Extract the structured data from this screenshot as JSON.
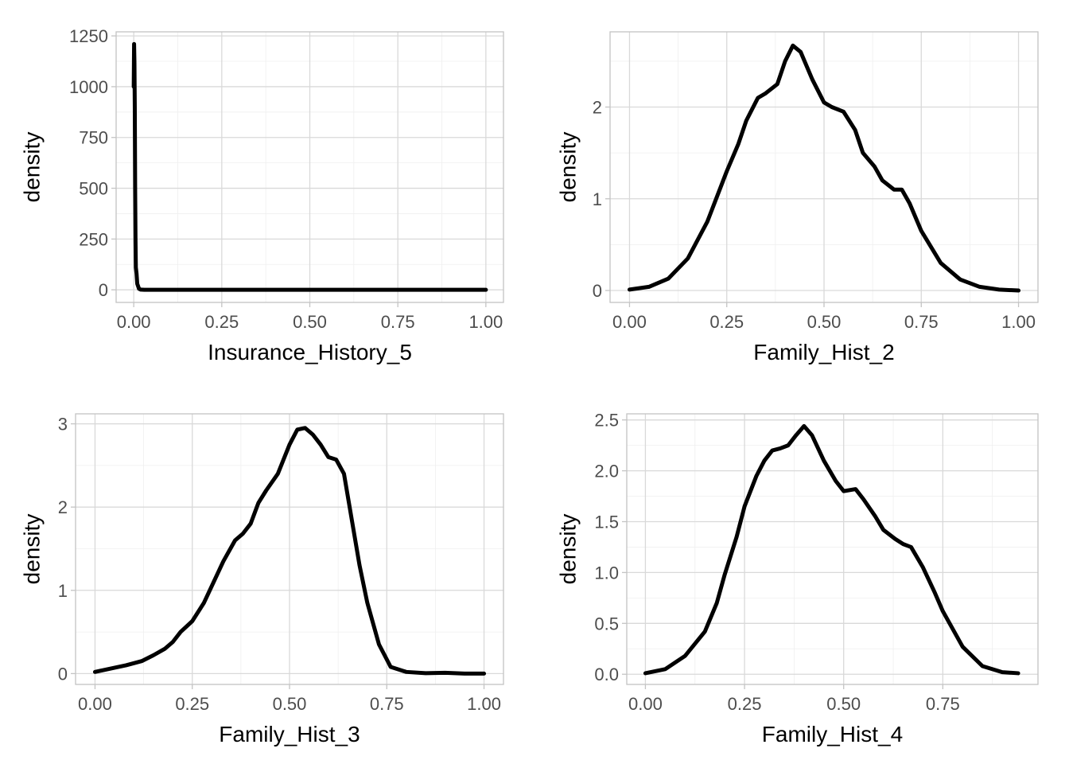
{
  "style": {
    "line_color": "#000000",
    "grid_major": "#d9d9d9",
    "grid_minor": "#efefef",
    "border": "#c4c4c4",
    "tick_text": "#4d4d4d"
  },
  "chart_data": [
    {
      "type": "line",
      "xlabel": "Insurance_History_5",
      "ylabel": "density",
      "xlim": [
        -0.05,
        1.05
      ],
      "ylim": [
        -62,
        1270
      ],
      "xticks": [
        0,
        0.25,
        0.5,
        0.75,
        1.0
      ],
      "xtick_labels": [
        "0.00",
        "0.25",
        "0.50",
        "0.75",
        "1.00"
      ],
      "yticks": [
        0,
        250,
        500,
        750,
        1000,
        1250
      ],
      "ytick_labels": [
        "0",
        "250",
        "500",
        "750",
        "1000",
        "1250"
      ],
      "grid": true,
      "x": [
        0,
        0.001,
        0.002,
        0.003,
        0.004,
        0.005,
        0.006,
        0.008,
        0.01,
        0.015,
        0.02,
        0.03,
        0.05,
        0.1,
        0.25,
        0.5,
        0.75,
        1.0
      ],
      "y": [
        1000,
        1210,
        1120,
        900,
        500,
        250,
        110,
        80,
        30,
        5,
        1,
        0,
        0,
        0,
        0,
        0,
        0,
        0
      ]
    },
    {
      "type": "line",
      "xlabel": "Family_Hist_2",
      "ylabel": "density",
      "xlim": [
        -0.05,
        1.05
      ],
      "ylim": [
        -0.13,
        2.82
      ],
      "xticks": [
        0,
        0.25,
        0.5,
        0.75,
        1.0
      ],
      "xtick_labels": [
        "0.00",
        "0.25",
        "0.50",
        "0.75",
        "1.00"
      ],
      "yticks": [
        0,
        1,
        2
      ],
      "ytick_labels": [
        "0",
        "1",
        "2"
      ],
      "grid": true,
      "x": [
        0,
        0.05,
        0.1,
        0.15,
        0.2,
        0.25,
        0.28,
        0.3,
        0.33,
        0.35,
        0.38,
        0.4,
        0.42,
        0.44,
        0.47,
        0.5,
        0.52,
        0.55,
        0.58,
        0.6,
        0.63,
        0.65,
        0.68,
        0.7,
        0.72,
        0.75,
        0.8,
        0.85,
        0.9,
        0.95,
        1.0
      ],
      "y": [
        0.01,
        0.04,
        0.13,
        0.35,
        0.75,
        1.3,
        1.6,
        1.85,
        2.1,
        2.15,
        2.25,
        2.5,
        2.67,
        2.6,
        2.3,
        2.05,
        2.0,
        1.95,
        1.75,
        1.5,
        1.35,
        1.2,
        1.1,
        1.1,
        0.95,
        0.65,
        0.3,
        0.12,
        0.04,
        0.01,
        0.0
      ]
    },
    {
      "type": "line",
      "xlabel": "Family_Hist_3",
      "ylabel": "density",
      "xlim": [
        -0.05,
        1.05
      ],
      "ylim": [
        -0.13,
        3.12
      ],
      "xticks": [
        0,
        0.25,
        0.5,
        0.75,
        1.0
      ],
      "xtick_labels": [
        "0.00",
        "0.25",
        "0.50",
        "0.75",
        "1.00"
      ],
      "yticks": [
        0,
        1,
        2,
        3
      ],
      "ytick_labels": [
        "0",
        "1",
        "2",
        "3"
      ],
      "grid": true,
      "x": [
        0,
        0.05,
        0.08,
        0.12,
        0.15,
        0.18,
        0.2,
        0.22,
        0.25,
        0.28,
        0.3,
        0.33,
        0.36,
        0.38,
        0.4,
        0.42,
        0.44,
        0.47,
        0.5,
        0.52,
        0.54,
        0.56,
        0.58,
        0.6,
        0.62,
        0.64,
        0.66,
        0.68,
        0.7,
        0.73,
        0.76,
        0.8,
        0.85,
        0.9,
        0.95,
        1.0
      ],
      "y": [
        0.02,
        0.07,
        0.1,
        0.15,
        0.22,
        0.3,
        0.38,
        0.5,
        0.63,
        0.85,
        1.05,
        1.35,
        1.6,
        1.68,
        1.8,
        2.05,
        2.2,
        2.4,
        2.75,
        2.93,
        2.95,
        2.87,
        2.75,
        2.6,
        2.57,
        2.4,
        1.85,
        1.3,
        0.85,
        0.35,
        0.08,
        0.02,
        0.005,
        0.01,
        0.0,
        0.0
      ]
    },
    {
      "type": "line",
      "xlabel": "Family_Hist_4",
      "ylabel": "density",
      "xlim": [
        -0.047,
        0.99
      ],
      "ylim": [
        -0.1,
        2.56
      ],
      "xticks": [
        0,
        0.25,
        0.5,
        0.75
      ],
      "xtick_labels": [
        "0.00",
        "0.25",
        "0.50",
        "0.75"
      ],
      "yticks": [
        0,
        0.5,
        1.0,
        1.5,
        2.0,
        2.5
      ],
      "ytick_labels": [
        "0.0",
        "0.5",
        "1.0",
        "1.5",
        "2.0",
        "2.5"
      ],
      "grid": true,
      "x": [
        0,
        0.05,
        0.1,
        0.15,
        0.18,
        0.2,
        0.23,
        0.25,
        0.28,
        0.3,
        0.32,
        0.34,
        0.36,
        0.38,
        0.4,
        0.42,
        0.45,
        0.48,
        0.5,
        0.53,
        0.55,
        0.58,
        0.6,
        0.63,
        0.65,
        0.67,
        0.7,
        0.73,
        0.75,
        0.8,
        0.85,
        0.9,
        0.94
      ],
      "y": [
        0.01,
        0.05,
        0.18,
        0.42,
        0.7,
        0.98,
        1.35,
        1.65,
        1.95,
        2.1,
        2.2,
        2.22,
        2.25,
        2.35,
        2.44,
        2.35,
        2.1,
        1.9,
        1.8,
        1.82,
        1.72,
        1.55,
        1.42,
        1.33,
        1.28,
        1.25,
        1.05,
        0.8,
        0.62,
        0.27,
        0.08,
        0.02,
        0.01
      ]
    }
  ]
}
